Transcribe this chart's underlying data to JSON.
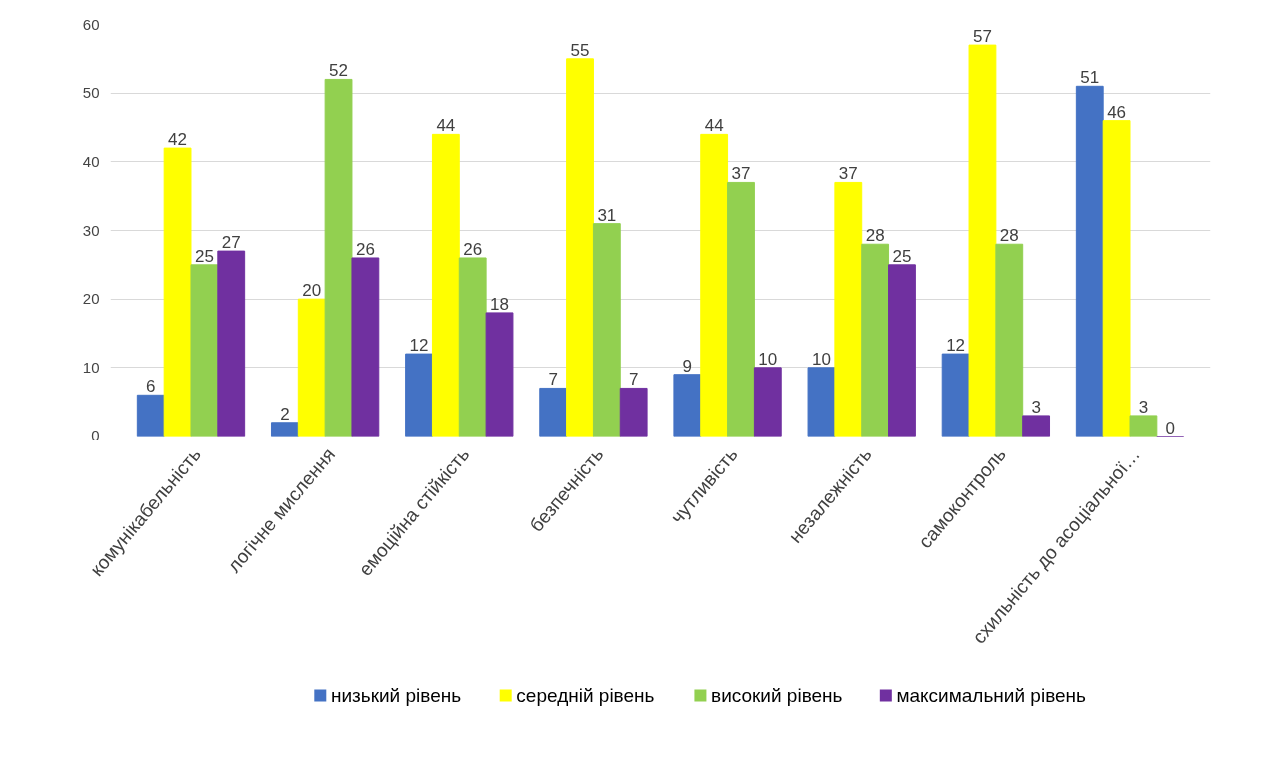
{
  "chart_data": {
    "type": "bar",
    "categories": [
      "комунікабельність",
      "логічне мислення",
      "емоційна стійкість",
      "безпечність",
      "чутливість",
      "незалежність",
      "самоконтроль",
      "схильність до асоціальної…"
    ],
    "series": [
      {
        "name": "низький рівень",
        "color": "#4472c4",
        "values": [
          6,
          2,
          12,
          7,
          9,
          10,
          12,
          51
        ]
      },
      {
        "name": "середній рівень",
        "color": "#ffff00",
        "values": [
          42,
          20,
          44,
          55,
          44,
          37,
          57,
          46
        ]
      },
      {
        "name": "високий рівень",
        "color": "#92d050",
        "values": [
          25,
          52,
          26,
          31,
          37,
          28,
          28,
          3
        ]
      },
      {
        "name": "максимальний рівень",
        "color": "#7030a0",
        "values": [
          27,
          26,
          18,
          7,
          10,
          25,
          3,
          0
        ]
      }
    ],
    "ylim": [
      0,
      60
    ],
    "yticks": [
      0,
      10,
      20,
      30,
      40,
      50,
      60
    ],
    "grid": "y",
    "legend": "bottom",
    "data_labels": true
  }
}
